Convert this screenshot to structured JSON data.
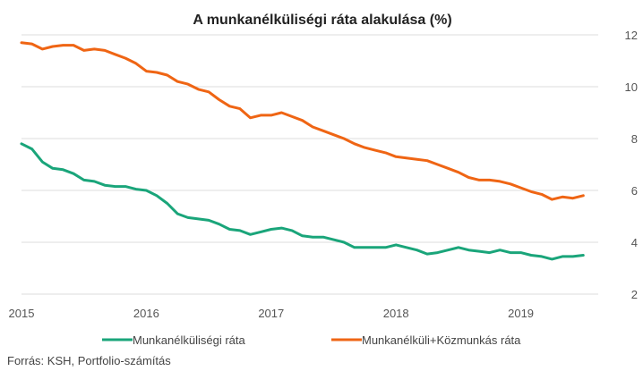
{
  "source": "Forrás: KSH, Portfolio-számítás",
  "chart_data": {
    "type": "line",
    "title": "A munkanélküliségi ráta alakulása  (%)",
    "xlabel": "",
    "ylabel": "",
    "ylim": [
      2,
      12
    ],
    "yticks": [
      2,
      4,
      6,
      8,
      10,
      12
    ],
    "xlim": [
      2015.0,
      2019.62
    ],
    "xticks": [
      "2015",
      "2016",
      "2017",
      "2018",
      "2019"
    ],
    "grid": "horizontal",
    "y_axis_side": "right",
    "legend_position": "bottom",
    "colors": {
      "series1": "#1aa57a",
      "series2": "#ef6514",
      "grid": "#dcdcdc"
    },
    "series": [
      {
        "name": "Munkanélküliségi ráta",
        "color": "#1aa57a",
        "x": [
          2015.0,
          2015.083,
          2015.167,
          2015.25,
          2015.333,
          2015.417,
          2015.5,
          2015.583,
          2015.667,
          2015.75,
          2015.833,
          2015.917,
          2016.0,
          2016.083,
          2016.167,
          2016.25,
          2016.333,
          2016.417,
          2016.5,
          2016.583,
          2016.667,
          2016.75,
          2016.833,
          2016.917,
          2017.0,
          2017.083,
          2017.167,
          2017.25,
          2017.333,
          2017.417,
          2017.5,
          2017.583,
          2017.667,
          2017.75,
          2017.833,
          2017.917,
          2018.0,
          2018.083,
          2018.167,
          2018.25,
          2018.333,
          2018.417,
          2018.5,
          2018.583,
          2018.667,
          2018.75,
          2018.833,
          2018.917,
          2019.0,
          2019.083,
          2019.167,
          2019.25,
          2019.333,
          2019.417,
          2019.5
        ],
        "values": [
          7.8,
          7.6,
          7.1,
          6.85,
          6.8,
          6.65,
          6.4,
          6.35,
          6.2,
          6.15,
          6.15,
          6.05,
          6.0,
          5.8,
          5.5,
          5.1,
          4.95,
          4.9,
          4.85,
          4.7,
          4.5,
          4.45,
          4.3,
          4.4,
          4.5,
          4.55,
          4.45,
          4.25,
          4.2,
          4.2,
          4.1,
          4.0,
          3.8,
          3.8,
          3.8,
          3.8,
          3.9,
          3.8,
          3.7,
          3.55,
          3.6,
          3.7,
          3.8,
          3.7,
          3.65,
          3.6,
          3.7,
          3.6,
          3.6,
          3.5,
          3.45,
          3.35,
          3.45,
          3.45,
          3.5
        ]
      },
      {
        "name": "Munkanélküli+Közmunkás ráta",
        "color": "#ef6514",
        "x": [
          2015.0,
          2015.083,
          2015.167,
          2015.25,
          2015.333,
          2015.417,
          2015.5,
          2015.583,
          2015.667,
          2015.75,
          2015.833,
          2015.917,
          2016.0,
          2016.083,
          2016.167,
          2016.25,
          2016.333,
          2016.417,
          2016.5,
          2016.583,
          2016.667,
          2016.75,
          2016.833,
          2016.917,
          2017.0,
          2017.083,
          2017.167,
          2017.25,
          2017.333,
          2017.417,
          2017.5,
          2017.583,
          2017.667,
          2017.75,
          2017.833,
          2017.917,
          2018.0,
          2018.083,
          2018.167,
          2018.25,
          2018.333,
          2018.417,
          2018.5,
          2018.583,
          2018.667,
          2018.75,
          2018.833,
          2018.917,
          2019.0,
          2019.083,
          2019.167,
          2019.25,
          2019.333,
          2019.417,
          2019.5
        ],
        "values": [
          11.7,
          11.65,
          11.45,
          11.55,
          11.6,
          11.6,
          11.4,
          11.45,
          11.4,
          11.25,
          11.1,
          10.9,
          10.6,
          10.55,
          10.45,
          10.2,
          10.1,
          9.9,
          9.8,
          9.5,
          9.25,
          9.15,
          8.8,
          8.9,
          8.9,
          9.0,
          8.85,
          8.7,
          8.45,
          8.3,
          8.15,
          8.0,
          7.8,
          7.65,
          7.55,
          7.45,
          7.3,
          7.25,
          7.2,
          7.15,
          7.0,
          6.85,
          6.7,
          6.5,
          6.4,
          6.4,
          6.35,
          6.25,
          6.1,
          5.95,
          5.85,
          5.65,
          5.75,
          5.7,
          5.8
        ]
      }
    ]
  }
}
